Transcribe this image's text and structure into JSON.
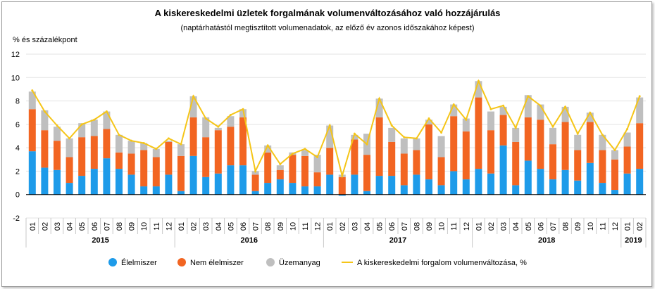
{
  "chart_data": {
    "type": "bar",
    "stacked": true,
    "title": "A kiskereskedelmi üzletek forgalmának volumenváltozásához való hozzájárulás",
    "subtitle": "(naptárhatástól megtisztított volumenadatok, az előző év azonos időszakához képest)",
    "ylabel": "% és százalékpont",
    "ylim": [
      -2,
      12
    ],
    "yticks": [
      -2,
      0,
      2,
      4,
      6,
      8,
      10,
      12
    ],
    "grid": true,
    "legend_position": "bottom",
    "categories": [
      "01",
      "02",
      "03",
      "04",
      "05",
      "06",
      "07",
      "08",
      "09",
      "10",
      "11",
      "12",
      "01",
      "02",
      "03",
      "04",
      "05",
      "06",
      "07",
      "08",
      "09",
      "10",
      "11",
      "12",
      "01",
      "02",
      "03",
      "04",
      "05",
      "06",
      "07",
      "08",
      "09",
      "10",
      "11",
      "12",
      "01",
      "02",
      "03",
      "04",
      "05",
      "06",
      "07",
      "08",
      "09",
      "10",
      "11",
      "12",
      "01",
      "02"
    ],
    "years": [
      {
        "label": "2015",
        "start": 0,
        "count": 12
      },
      {
        "label": "2016",
        "start": 12,
        "count": 12
      },
      {
        "label": "2017",
        "start": 24,
        "count": 12
      },
      {
        "label": "2018",
        "start": 36,
        "count": 12
      },
      {
        "label": "2019",
        "start": 48,
        "count": 2
      }
    ],
    "series": [
      {
        "name": "Élelmiszer",
        "kind": "bar",
        "color": "#1e9be9",
        "values": [
          3.7,
          2.3,
          2.1,
          1.0,
          1.6,
          2.2,
          3.1,
          2.2,
          1.7,
          0.7,
          0.7,
          1.7,
          0.3,
          3.3,
          1.5,
          1.8,
          2.5,
          2.5,
          0.3,
          1.0,
          1.3,
          1.0,
          0.7,
          0.7,
          1.7,
          -0.1,
          1.7,
          0.3,
          1.6,
          1.6,
          0.8,
          1.7,
          1.3,
          0.8,
          2.0,
          1.3,
          2.2,
          1.8,
          4.2,
          0.8,
          2.9,
          2.2,
          1.3,
          2.1,
          1.2,
          2.7,
          1.0,
          0.4,
          1.8,
          2.2
        ]
      },
      {
        "name": "Nem élelmiszer",
        "kind": "bar",
        "color": "#f26522",
        "values": [
          3.6,
          3.2,
          2.5,
          2.2,
          3.3,
          2.8,
          2.5,
          1.4,
          1.8,
          3.1,
          2.5,
          2.8,
          3.0,
          3.3,
          3.4,
          3.7,
          3.3,
          4.1,
          1.4,
          2.6,
          0.8,
          2.4,
          2.6,
          1.2,
          2.3,
          1.5,
          3.0,
          3.1,
          5.0,
          2.9,
          2.7,
          2.1,
          4.7,
          2.4,
          4.7,
          4.1,
          6.1,
          3.7,
          2.6,
          3.7,
          3.7,
          4.2,
          3.0,
          4.1,
          2.6,
          3.5,
          2.8,
          2.6,
          2.3,
          3.9
        ]
      },
      {
        "name": "Üzemanyag",
        "kind": "bar",
        "color": "#bfbfbf",
        "values": [
          1.5,
          1.7,
          1.2,
          1.6,
          1.2,
          1.4,
          1.5,
          1.5,
          1.1,
          0.6,
          0.7,
          0.1,
          1.0,
          1.8,
          1.7,
          0.2,
          0.9,
          0.7,
          0.3,
          0.6,
          0.4,
          0.2,
          0.5,
          1.5,
          1.9,
          0.2,
          0.4,
          1.8,
          1.6,
          1.2,
          1.3,
          1.0,
          0.4,
          1.8,
          1.0,
          1.1,
          1.4,
          1.6,
          0.7,
          1.2,
          1.9,
          1.3,
          1.4,
          1.3,
          1.3,
          0.8,
          1.3,
          0.8,
          1.2,
          2.2
        ]
      },
      {
        "name": "A kiskereskedelmi forgalom volumenváltozása, %",
        "kind": "line",
        "color": "#f5c518",
        "values": [
          8.9,
          7.1,
          5.9,
          4.8,
          6.0,
          6.4,
          7.1,
          5.1,
          4.6,
          4.4,
          3.9,
          4.8,
          4.3,
          8.4,
          6.5,
          5.8,
          6.8,
          7.3,
          2.0,
          4.2,
          2.6,
          3.5,
          3.9,
          3.2,
          5.9,
          1.6,
          5.2,
          4.3,
          8.2,
          5.9,
          4.9,
          4.8,
          6.5,
          5.3,
          7.7,
          6.4,
          9.7,
          7.3,
          7.6,
          5.7,
          8.4,
          7.6,
          5.8,
          7.5,
          5.2,
          7.0,
          5.1,
          3.8,
          5.6,
          8.4
        ]
      }
    ]
  }
}
